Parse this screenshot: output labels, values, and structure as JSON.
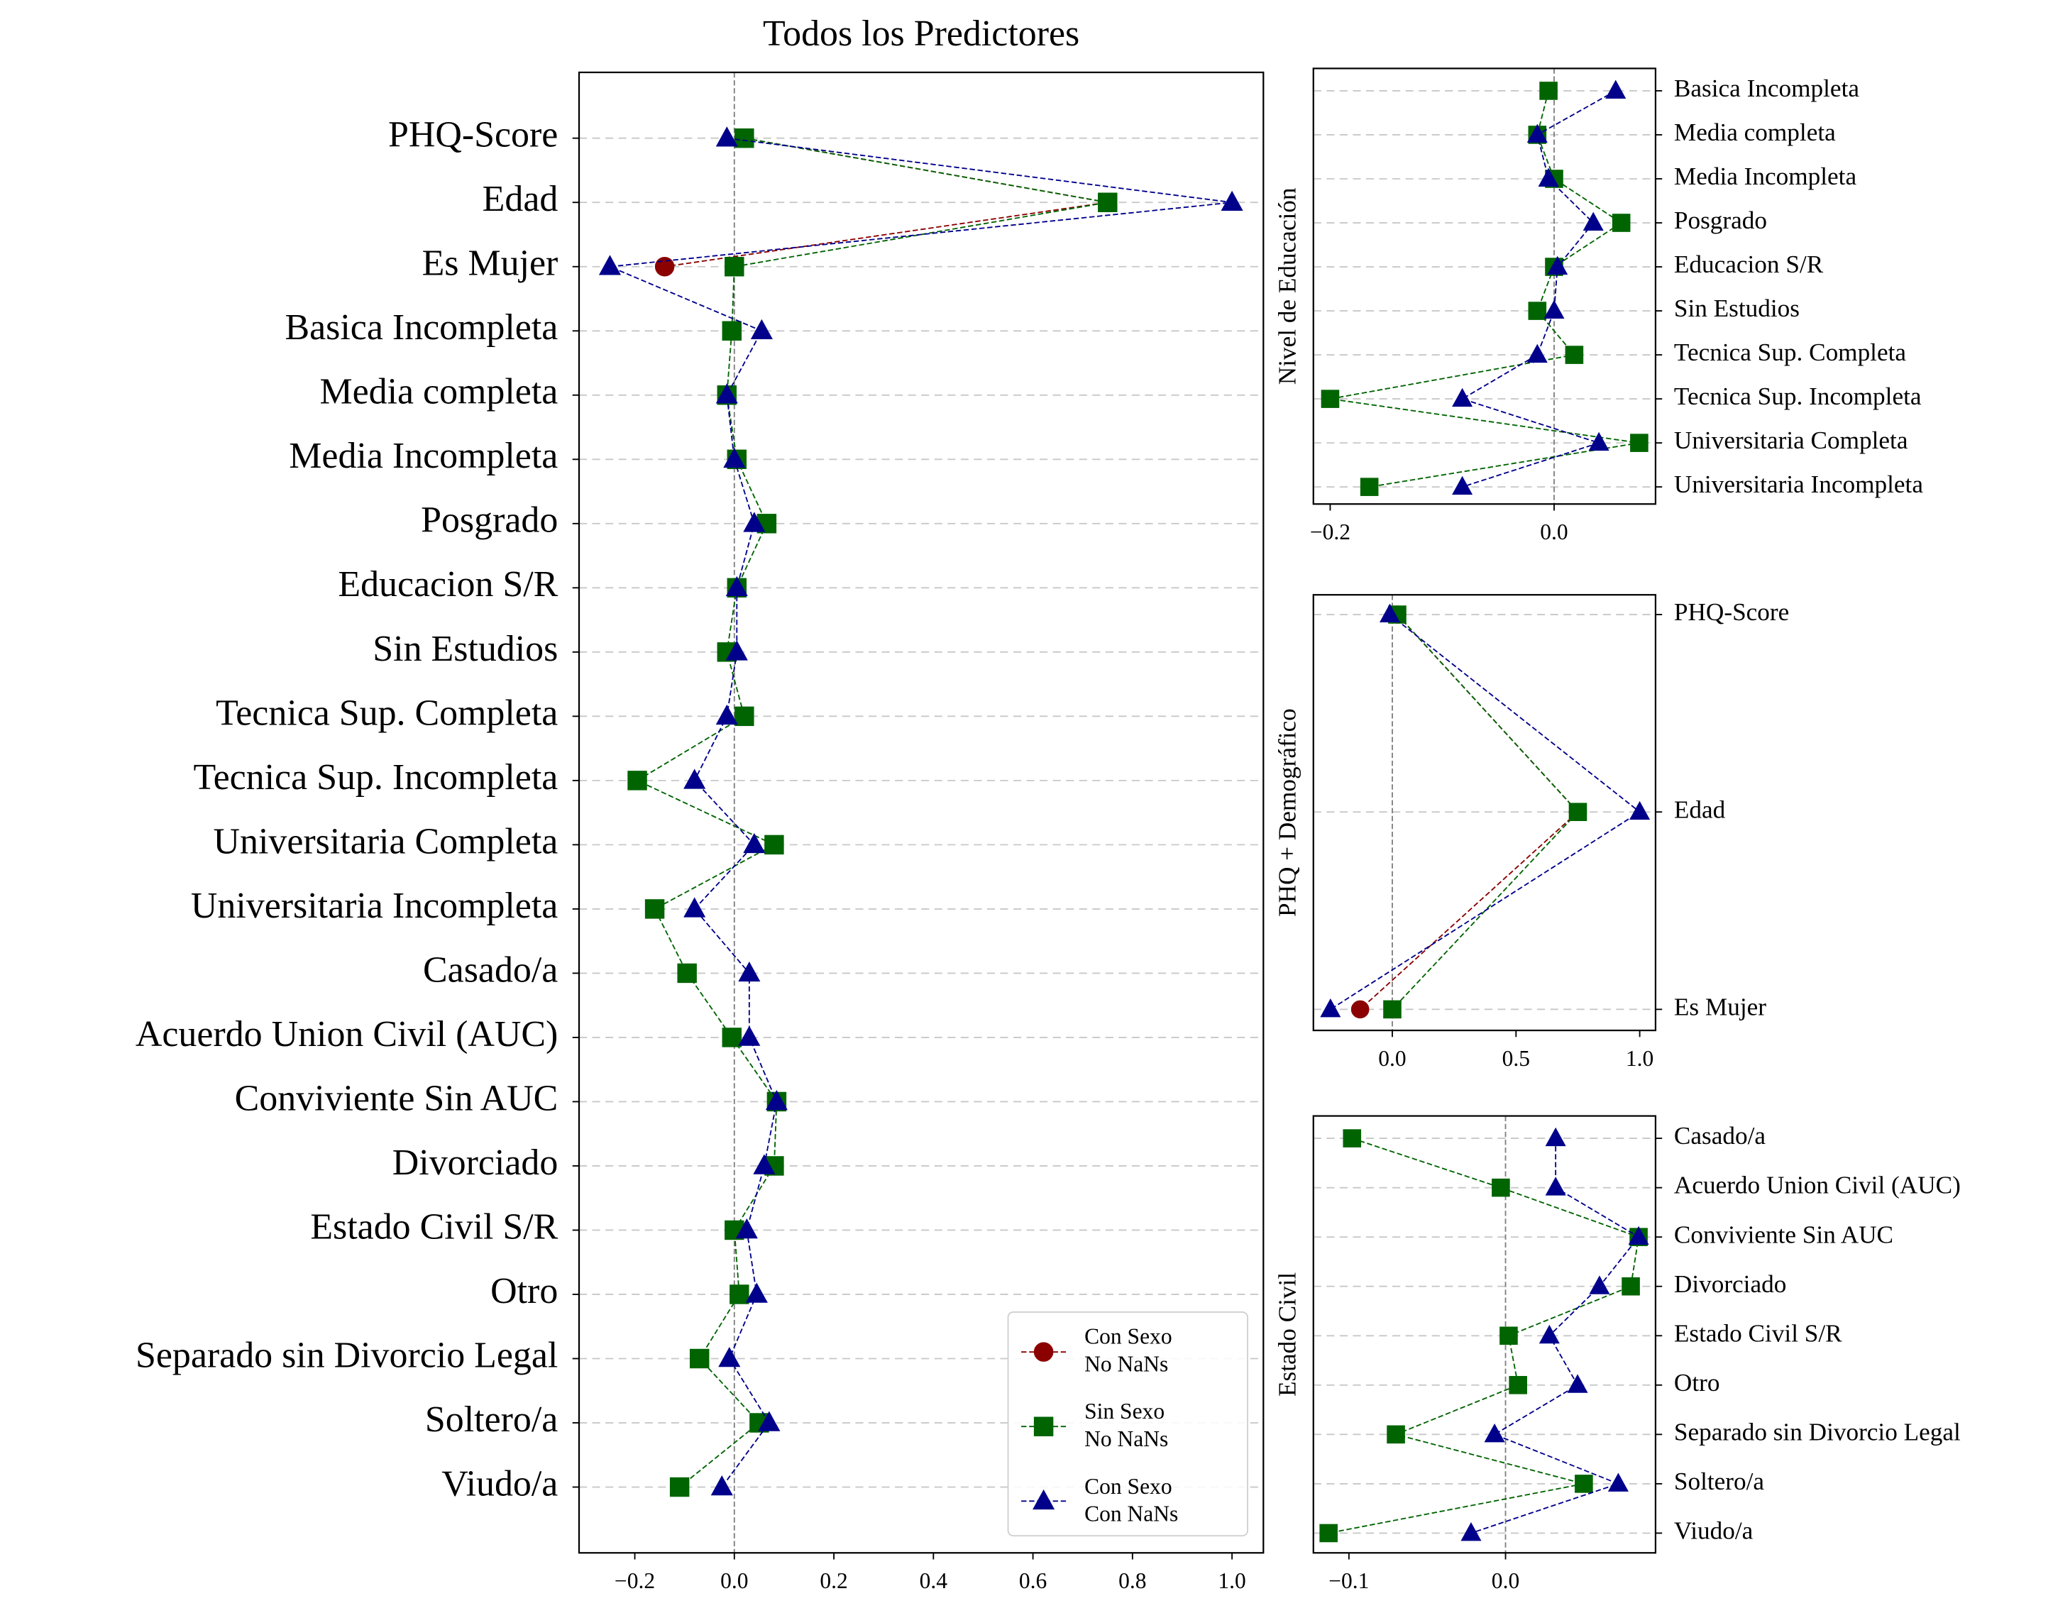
{
  "chart_data": [
    {
      "type": "line",
      "title": "Todos los Predictores",
      "categories": [
        "PHQ-Score",
        "Edad",
        "Es Mujer",
        "Basica Incompleta",
        "Media completa",
        "Media Incompleta",
        "Posgrado",
        "Educacion S/R",
        "Sin Estudios",
        "Tecnica Sup. Completa",
        "Tecnica Sup. Incompleta",
        "Universitaria Completa",
        "Universitaria Incompleta",
        "Casado/a",
        "Acuerdo Union Civil (AUC)",
        "Conviviente Sin AUC",
        "Divorciado",
        "Estado Civil S/R",
        "Otro",
        "Separado sin Divorcio Legal",
        "Soltero/a",
        "Viudo/a"
      ],
      "series": [
        {
          "name": "Con Sexo\nNo NaNs",
          "color": "#8b0000",
          "marker": "circle",
          "values": [
            0.02,
            0.75,
            -0.14,
            null,
            null,
            null,
            null,
            null,
            null,
            null,
            null,
            null,
            null,
            null,
            null,
            null,
            null,
            null,
            null,
            null,
            null,
            null
          ]
        },
        {
          "name": "Sin Sexo\nNo NaNs",
          "color": "#006400",
          "marker": "square",
          "values": [
            0.02,
            0.75,
            0.0,
            -0.005,
            -0.015,
            0.005,
            0.065,
            0.005,
            -0.015,
            0.02,
            -0.195,
            0.08,
            -0.16,
            -0.095,
            -0.005,
            0.085,
            0.08,
            0.0,
            0.01,
            -0.07,
            0.05,
            -0.11
          ]
        },
        {
          "name": "Con Sexo\nCon NaNs",
          "color": "#00008b",
          "marker": "triangle",
          "values": [
            -0.015,
            1.0,
            -0.25,
            0.055,
            -0.015,
            0.0,
            0.04,
            0.005,
            0.005,
            -0.015,
            -0.08,
            0.04,
            -0.08,
            0.03,
            0.03,
            0.085,
            0.06,
            0.025,
            0.045,
            -0.01,
            0.07,
            -0.025
          ]
        }
      ],
      "xlim": [
        -0.312,
        1.063
      ],
      "xticks": [
        {
          "value": -0.2,
          "label": "−0.2"
        },
        {
          "value": 0.0,
          "label": "0.0"
        },
        0.2,
        0.4,
        0.6,
        0.8,
        {
          "value": 1.0,
          "label": "1.0"
        }
      ],
      "vline": 0,
      "grid": true,
      "legend": "lower right"
    },
    {
      "type": "line",
      "ylabel": "Nivel de Educación",
      "categories": [
        "Basica Incompleta",
        "Media completa",
        "Media Incompleta",
        "Posgrado",
        "Educacion S/R",
        "Sin Estudios",
        "Tecnica Sup. Completa",
        "Tecnica Sup. Incompleta",
        "Universitaria Completa",
        "Universitaria Incompleta"
      ],
      "series": [
        {
          "color": "#006400",
          "marker": "square",
          "values": [
            -0.005,
            -0.015,
            0.0,
            0.06,
            0.0,
            -0.015,
            0.018,
            -0.2,
            0.076,
            -0.165
          ]
        },
        {
          "color": "#00008b",
          "marker": "triangle",
          "values": [
            0.055,
            -0.015,
            -0.005,
            0.035,
            0.003,
            0.0,
            -0.015,
            -0.082,
            0.04,
            -0.082
          ]
        }
      ],
      "xlim": [
        -0.215,
        0.0906
      ],
      "xticks": [
        {
          "value": -0.2,
          "label": "−0.2"
        },
        {
          "value": 0.0,
          "label": "0.0"
        }
      ],
      "vline": 0,
      "grid": true
    },
    {
      "type": "line",
      "ylabel": "PHQ + Demográfico",
      "categories": [
        "PHQ-Score",
        "Edad",
        "Es Mujer"
      ],
      "series": [
        {
          "color": "#8b0000",
          "marker": "circle",
          "values": [
            0.02,
            0.75,
            -0.13
          ]
        },
        {
          "color": "#006400",
          "marker": "square",
          "values": [
            0.02,
            0.75,
            0.0
          ]
        },
        {
          "color": "#00008b",
          "marker": "triangle",
          "values": [
            -0.01,
            1.0,
            -0.25
          ]
        }
      ],
      "xlim": [
        -0.319,
        1.064
      ],
      "xticks": [
        {
          "value": 0.0,
          "label": "0.0"
        },
        0.5,
        {
          "value": 1.0,
          "label": "1.0"
        }
      ],
      "vline": 0,
      "grid": true
    },
    {
      "type": "line",
      "ylabel": "Estado Civil",
      "categories": [
        "Casado/a",
        "Acuerdo Union Civil (AUC)",
        "Conviviente Sin AUC",
        "Divorciado",
        "Estado Civil S/R",
        "Otro",
        "Separado sin Divorcio Legal",
        "Soltero/a",
        "Viudo/a"
      ],
      "series": [
        {
          "color": "#006400",
          "marker": "square",
          "values": [
            -0.098,
            -0.003,
            0.085,
            0.08,
            0.002,
            0.008,
            -0.07,
            0.05,
            -0.113
          ]
        },
        {
          "color": "#00008b",
          "marker": "triangle",
          "values": [
            0.032,
            0.032,
            0.085,
            0.06,
            0.028,
            0.046,
            -0.007,
            0.072,
            -0.022
          ]
        }
      ],
      "xlim": [
        -0.1227,
        0.0958
      ],
      "xticks": [
        {
          "value": -0.1,
          "label": "−0.1"
        },
        {
          "value": 0.0,
          "label": "0.0"
        }
      ],
      "vline": 0,
      "grid": true
    }
  ]
}
